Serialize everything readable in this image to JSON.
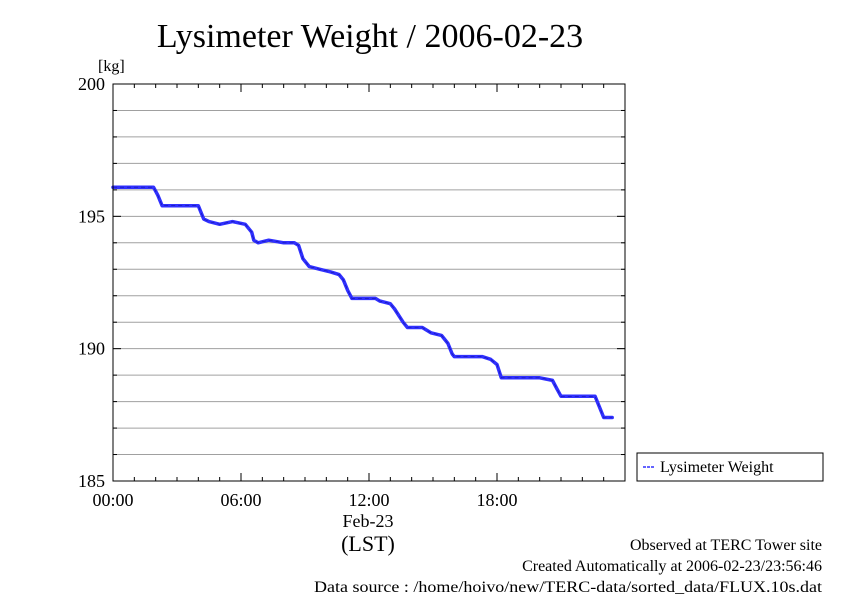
{
  "chart_data": {
    "type": "line",
    "title": "Lysimeter Weight / 2006-02-23",
    "ylabel": "[kg]",
    "ylim": [
      185,
      200
    ],
    "y_ticks": [
      185,
      190,
      195,
      200
    ],
    "y_tick_labels": [
      "185",
      "190",
      "195",
      "200"
    ],
    "xlim": [
      0,
      24
    ],
    "x_ticks": [
      0,
      6,
      12,
      18
    ],
    "x_tick_labels": [
      "00:00",
      "06:00",
      "12:00",
      "18:00"
    ],
    "x_date_label": "Feb-23",
    "x_unit_label": "(LST)",
    "grid": true,
    "legend_position": "right",
    "series": [
      {
        "name": "Lysimeter Weight",
        "color": "#3030ff",
        "x": [
          0.0,
          1.9,
          2.1,
          2.3,
          3.0,
          4.0,
          4.25,
          4.5,
          5.0,
          5.6,
          6.2,
          6.5,
          6.6,
          6.8,
          7.3,
          8.0,
          8.5,
          8.7,
          8.9,
          9.2,
          9.7,
          10.2,
          10.6,
          10.8,
          11.0,
          11.2,
          12.3,
          12.5,
          13.0,
          13.2,
          13.6,
          13.8,
          14.0,
          14.5,
          14.9,
          15.4,
          15.7,
          15.9,
          16.0,
          16.5,
          17.3,
          17.7,
          18.0,
          18.2,
          19.0,
          20.0,
          20.6,
          20.8,
          21.0,
          21.2,
          21.7,
          22.6,
          22.8,
          23.0,
          23.4
        ],
        "y": [
          196.1,
          196.1,
          195.8,
          195.4,
          195.4,
          195.4,
          194.9,
          194.8,
          194.7,
          194.8,
          194.7,
          194.4,
          194.1,
          194.0,
          194.1,
          194.0,
          194.0,
          193.9,
          193.4,
          193.1,
          193.0,
          192.9,
          192.8,
          192.6,
          192.2,
          191.9,
          191.9,
          191.8,
          191.7,
          191.5,
          191.0,
          190.8,
          190.8,
          190.8,
          190.6,
          190.5,
          190.2,
          189.8,
          189.7,
          189.7,
          189.7,
          189.6,
          189.4,
          188.9,
          188.9,
          188.9,
          188.8,
          188.5,
          188.2,
          188.2,
          188.2,
          188.2,
          187.8,
          187.4,
          187.4
        ]
      }
    ]
  },
  "footer": {
    "line1": "Observed at TERC Tower site",
    "line2": "Created Automatically at 2006-02-23/23:56:46",
    "line3": "Data source : /home/hoivo/new/TERC-data/sorted_data/FLUX.10s.dat"
  }
}
